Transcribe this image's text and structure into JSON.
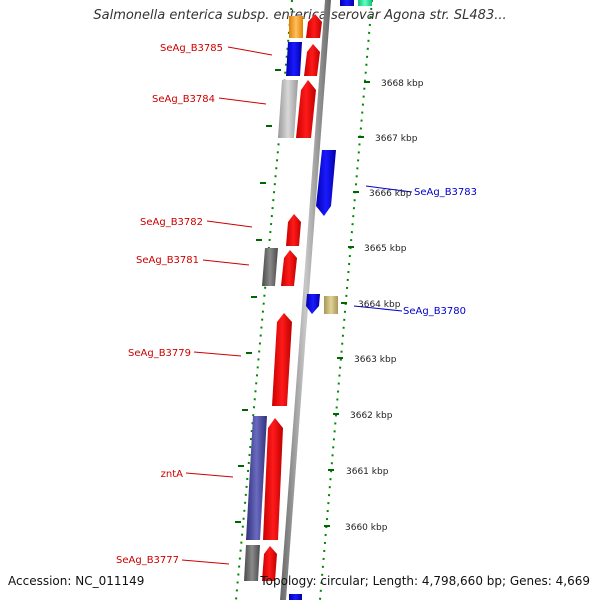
{
  "title": "Salmonella enterica subsp. enterica serovar Agona str. SL483...",
  "footer": {
    "accession": "Accession: NC_011149",
    "summary": "Topology: circular; Length: 4,798,660 bp; Genes: 4,669"
  },
  "colors": {
    "forward_cds": "#ff0000",
    "reverse_cds": "#0000ee",
    "gray_feature": "#bbbbbb",
    "dark_gray_feature": "#666666",
    "purple_feature": "#4a4a9c",
    "khaki_feature": "#c8b878",
    "orange_feature": "#f5a020",
    "teal_feature": "#20e0a0",
    "forward_label": "#cc0000",
    "reverse_label": "#0000cc",
    "backbone": "#888888",
    "dotted_guide": "#008800"
  },
  "ticks": [
    {
      "label": "3668 kbp"
    },
    {
      "label": "3667 kbp"
    },
    {
      "label": "3666 kbp"
    },
    {
      "label": "3665 kbp"
    },
    {
      "label": "3664 kbp"
    },
    {
      "label": "3663 kbp"
    },
    {
      "label": "3662 kbp"
    },
    {
      "label": "3661 kbp"
    },
    {
      "label": "3660 kbp"
    }
  ],
  "gene_labels": [
    {
      "name": "SeAg_B3785",
      "strand": "forward"
    },
    {
      "name": "SeAg_B3784",
      "strand": "forward"
    },
    {
      "name": "SeAg_B3783",
      "strand": "reverse"
    },
    {
      "name": "SeAg_B3782",
      "strand": "forward"
    },
    {
      "name": "SeAg_B3781",
      "strand": "forward"
    },
    {
      "name": "SeAg_B3780",
      "strand": "reverse"
    },
    {
      "name": "SeAg_B3779",
      "strand": "forward"
    },
    {
      "name": "zntA",
      "strand": "forward"
    },
    {
      "name": "SeAg_B3777",
      "strand": "forward"
    }
  ]
}
